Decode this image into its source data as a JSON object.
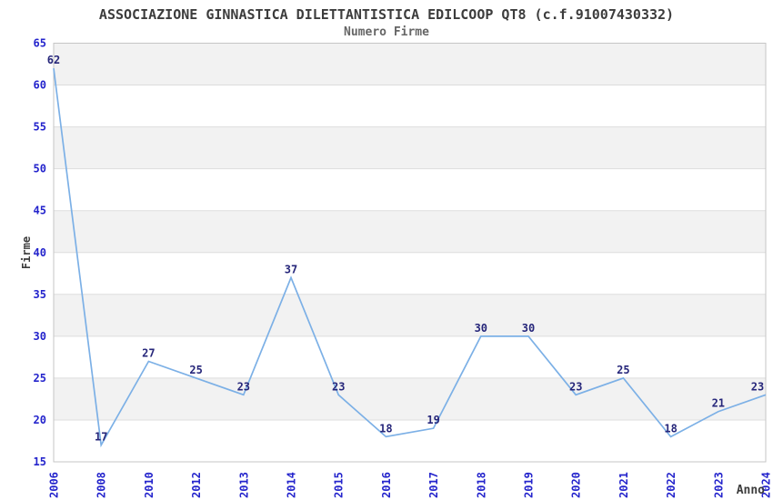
{
  "chart_data": {
    "type": "line",
    "title": "ASSOCIAZIONE GINNASTICA DILETTANTISTICA EDILCOOP QT8 (c.f.91007430332)",
    "subtitle": "Numero Firme",
    "xlabel": "Anno",
    "ylabel": "Firme",
    "categories": [
      "2006",
      "2008",
      "2010",
      "2012",
      "2013",
      "2014",
      "2015",
      "2016",
      "2017",
      "2018",
      "2019",
      "2020",
      "2021",
      "2022",
      "2023",
      "2024"
    ],
    "values": [
      62,
      17,
      27,
      25,
      23,
      37,
      23,
      18,
      19,
      30,
      30,
      23,
      25,
      18,
      21,
      23
    ],
    "ylim": [
      15,
      65
    ],
    "ytick_step": 5,
    "grid": true,
    "legend_position": "none",
    "band_pattern": "alternating horizontal stripes, gray topmost",
    "colors": {
      "line": "#7cb0e6",
      "tick_label": "#2424cc",
      "point_label": "#26267a",
      "band": "#f2f2f2",
      "band_alt": "#ffffff",
      "gridline": "#dddddd",
      "border": "#c6c6c6",
      "title": "#3c3c3c",
      "subtitle": "#666666",
      "axis_title": "#3c3c3c"
    }
  }
}
